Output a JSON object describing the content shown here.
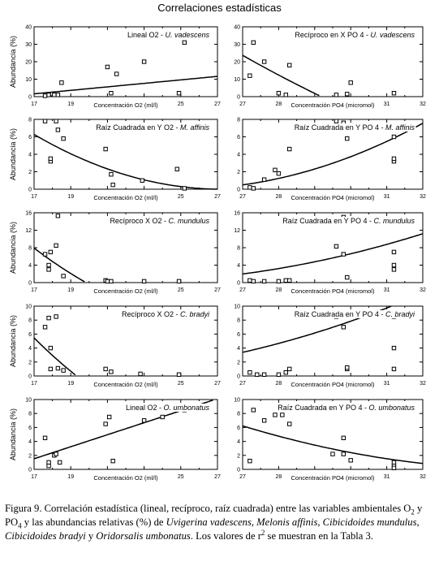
{
  "title": "Correlaciones estadísticas",
  "caption": {
    "lead": "Figura 9.",
    "text1": " Correlación estadística (lineal, recíproco, raíz cuadrada) entre las variables ambientales O",
    "sub_a": "2",
    "text2": " y PO",
    "sub_b": "4",
    "text3": " y las abundancias relativas (%) de ",
    "species": "Uvigerina vadescens, Melonis affinis, Cibicidoides mundulus, Cibicidoides bradyi",
    "text4": " y ",
    "species_last": "Oridorsalis umbonatus",
    "text5": ". Los valores de r",
    "sup": "2",
    "text6": " se muestran en la Tabla 3."
  },
  "chart_data": [
    {
      "type": "scatter",
      "row": 0,
      "col": 0,
      "title": "Lineal O2 - ",
      "title_italic": "U. vadescens",
      "ylabel": "Abundancia (%)",
      "xlabel": "Concentración O2 (ml/l)",
      "xlim": [
        17,
        27
      ],
      "ylim": [
        0,
        40
      ],
      "xticks": [
        17,
        19,
        21,
        23,
        25,
        27
      ],
      "yticks": [
        0,
        10,
        20,
        30,
        40
      ],
      "points": [
        [
          17.6,
          0.5
        ],
        [
          17.8,
          1
        ],
        [
          18,
          1.5
        ],
        [
          18.1,
          1
        ],
        [
          18.3,
          1
        ],
        [
          18.5,
          8
        ],
        [
          21,
          17
        ],
        [
          21.2,
          2
        ],
        [
          21.5,
          13
        ],
        [
          23,
          20
        ],
        [
          24.9,
          2
        ],
        [
          25.2,
          31
        ]
      ],
      "fit": {
        "kind": "linear",
        "a": -15.4,
        "b": 1.0
      }
    },
    {
      "type": "scatter",
      "row": 0,
      "col": 1,
      "title": "Recíproco en X PO 4 - ",
      "title_italic": "U. vadescens",
      "xlabel": "Concentración PO4 (micromol)",
      "xlim": [
        27,
        32
      ],
      "ylim": [
        0,
        40
      ],
      "xticks": [
        27,
        28,
        29,
        30,
        31,
        32
      ],
      "yticks": [
        0,
        10,
        20,
        30,
        40
      ],
      "points": [
        [
          27.2,
          12
        ],
        [
          27.3,
          31
        ],
        [
          27.6,
          20
        ],
        [
          28,
          2
        ],
        [
          28.2,
          1
        ],
        [
          28.3,
          18
        ],
        [
          29.6,
          1
        ],
        [
          29.9,
          1.5
        ],
        [
          30,
          8
        ],
        [
          31.2,
          2
        ]
      ],
      "fit": {
        "kind": "recip",
        "a": -292.5,
        "b": 8536
      }
    },
    {
      "type": "scatter",
      "row": 1,
      "col": 0,
      "title": "Raíz Cuadrada en Y O2 - ",
      "title_italic": "M. affinis",
      "ylabel": "Abundancia (%)",
      "xlabel": "Concentración O2 (ml/l)",
      "xlim": [
        17,
        27
      ],
      "ylim": [
        0,
        8
      ],
      "xticks": [
        17,
        19,
        21,
        23,
        25,
        27
      ],
      "yticks": [
        0,
        2,
        4,
        6,
        8
      ],
      "points": [
        [
          17.6,
          7.8
        ],
        [
          17.9,
          3.2
        ],
        [
          17.9,
          3.5
        ],
        [
          18.2,
          7.8
        ],
        [
          18.3,
          6.8
        ],
        [
          18.6,
          5.8
        ],
        [
          20.9,
          4.6
        ],
        [
          21.2,
          1.7
        ],
        [
          21.3,
          0.5
        ],
        [
          22.9,
          1
        ],
        [
          24.8,
          2.3
        ],
        [
          25.2,
          0.1
        ]
      ],
      "fit": {
        "kind": "sqrt",
        "a": 6.67,
        "b": -0.245
      }
    },
    {
      "type": "scatter",
      "row": 1,
      "col": 1,
      "title": "Raíz Cuadrada en Y PO 4 - ",
      "title_italic": "M. affinis",
      "xlabel": "Concentración PO4 (micromol)",
      "xlim": [
        27,
        32
      ],
      "ylim": [
        0,
        8
      ],
      "xticks": [
        27,
        28,
        29,
        30,
        31,
        32
      ],
      "yticks": [
        0,
        2,
        4,
        6,
        8
      ],
      "points": [
        [
          27.2,
          0.2
        ],
        [
          27.3,
          0.1
        ],
        [
          27.6,
          1.1
        ],
        [
          27.9,
          2.2
        ],
        [
          28,
          1.8
        ],
        [
          28.3,
          4.6
        ],
        [
          29.6,
          7.8
        ],
        [
          29.8,
          7.6
        ],
        [
          29.9,
          5.8
        ],
        [
          31.2,
          3.2
        ],
        [
          31.2,
          3.5
        ],
        [
          31.2,
          6
        ]
      ],
      "fit": {
        "kind": "sqrt",
        "a": -10.34,
        "b": 0.409
      }
    },
    {
      "type": "scatter",
      "row": 2,
      "col": 0,
      "title": "Recíproco X O2 - ",
      "title_italic": "C. mundulus",
      "ylabel": "Abundancia (%)",
      "xlabel": "Concentración O2 (ml/l)",
      "xlim": [
        17,
        27
      ],
      "ylim": [
        0,
        16
      ],
      "xticks": [
        17,
        19,
        21,
        23,
        25,
        27
      ],
      "yticks": [
        0,
        4,
        8,
        12,
        16
      ],
      "points": [
        [
          17.6,
          6.5
        ],
        [
          17.8,
          3
        ],
        [
          17.8,
          4
        ],
        [
          17.9,
          7
        ],
        [
          18.2,
          8.5
        ],
        [
          18.3,
          15.3
        ],
        [
          18.6,
          1.5
        ],
        [
          20.9,
          0.5
        ],
        [
          21,
          0.3
        ],
        [
          21.2,
          0.3
        ],
        [
          23,
          0.3
        ],
        [
          24.9,
          0.3
        ]
      ],
      "fit": {
        "kind": "recip",
        "a": -47.6,
        "b": 944
      }
    },
    {
      "type": "scatter",
      "row": 2,
      "col": 1,
      "title": "Raíz Cuadrada en Y PO 4 - ",
      "title_italic": "C. mundulus",
      "xlabel": "Concentración PO4 (micromol)",
      "xlim": [
        27,
        32
      ],
      "ylim": [
        0,
        16
      ],
      "xticks": [
        27,
        28,
        29,
        30,
        31,
        32
      ],
      "yticks": [
        0,
        4,
        8,
        12,
        16
      ],
      "points": [
        [
          27.2,
          0.5
        ],
        [
          27.3,
          0.3
        ],
        [
          27.6,
          0.3
        ],
        [
          28,
          0.3
        ],
        [
          28.2,
          0.5
        ],
        [
          28.3,
          0.5
        ],
        [
          29.6,
          8.3
        ],
        [
          29.8,
          15
        ],
        [
          29.8,
          6.5
        ],
        [
          29.9,
          1.2
        ],
        [
          31.2,
          7
        ],
        [
          31.2,
          4
        ],
        [
          31.2,
          3
        ]
      ],
      "fit": {
        "kind": "sqrt",
        "a": -9.07,
        "b": 0.388
      }
    },
    {
      "type": "scatter",
      "row": 3,
      "col": 0,
      "title": "Recíproco X O2 - ",
      "title_italic": "C. bradyi",
      "ylabel": "Abundancia (%)",
      "xlabel": "Concentración O2 (ml/l)",
      "xlim": [
        17,
        27
      ],
      "ylim": [
        0,
        10
      ],
      "xticks": [
        17,
        19,
        21,
        23,
        25,
        27
      ],
      "yticks": [
        0,
        2,
        4,
        6,
        8,
        10
      ],
      "points": [
        [
          17.6,
          7
        ],
        [
          17.8,
          8.3
        ],
        [
          17.9,
          4
        ],
        [
          17.9,
          1
        ],
        [
          18.2,
          8.5
        ],
        [
          18.3,
          1.1
        ],
        [
          18.6,
          0.8
        ],
        [
          20.9,
          1
        ],
        [
          21.2,
          0.6
        ],
        [
          22.8,
          0.3
        ],
        [
          24.9,
          0.2
        ]
      ],
      "fit": {
        "kind": "recip",
        "a": -40,
        "b": 773
      }
    },
    {
      "type": "scatter",
      "row": 3,
      "col": 1,
      "title": "Raíz Cuadrada en Y  PO 4 - ",
      "title_italic": "C. bradyi",
      "xlabel": "Concentración PO4 (micromol)",
      "xlim": [
        27,
        32
      ],
      "ylim": [
        0,
        10
      ],
      "xticks": [
        27,
        28,
        29,
        30,
        31,
        32
      ],
      "yticks": [
        0,
        2,
        4,
        6,
        8,
        10
      ],
      "points": [
        [
          27.2,
          0.5
        ],
        [
          27.4,
          0.2
        ],
        [
          27.6,
          0.2
        ],
        [
          28,
          0.2
        ],
        [
          28.2,
          0.5
        ],
        [
          28.3,
          1
        ],
        [
          29.6,
          8.5
        ],
        [
          29.8,
          7
        ],
        [
          29.9,
          1
        ],
        [
          29.9,
          1.2
        ],
        [
          31.2,
          8.5
        ],
        [
          31.2,
          4
        ],
        [
          31.2,
          1
        ]
      ],
      "fit": {
        "kind": "sqrt",
        "a": -6.8,
        "b": 0.32
      }
    },
    {
      "type": "scatter",
      "row": 4,
      "col": 0,
      "title": "Lineal O2 - ",
      "title_italic": "O. umbonatus",
      "ylabel": "Abundancia (%)",
      "xlabel": "Concentración O2 (ml/l)",
      "xlim": [
        17,
        27
      ],
      "ylim": [
        0,
        10
      ],
      "xticks": [
        17,
        19,
        21,
        23,
        25,
        27
      ],
      "yticks": [
        0,
        2,
        4,
        6,
        8,
        10
      ],
      "points": [
        [
          17.6,
          4.5
        ],
        [
          17.8,
          1
        ],
        [
          17.8,
          0.5
        ],
        [
          18.1,
          2
        ],
        [
          18.2,
          2.2
        ],
        [
          18.4,
          1
        ],
        [
          20.9,
          6.5
        ],
        [
          21.1,
          7.5
        ],
        [
          21.3,
          1.2
        ],
        [
          23,
          7
        ],
        [
          24,
          7.5
        ],
        [
          25.2,
          8.5
        ]
      ],
      "fit": {
        "kind": "linear",
        "a": -13.1,
        "b": 0.86
      }
    },
    {
      "type": "scatter",
      "row": 4,
      "col": 1,
      "title": "Raíz Cuadrada en Y  PO 4 - ",
      "title_italic": "O. umbonatus",
      "xlabel": "Concentración PO4 (micromol)",
      "xlim": [
        27,
        32
      ],
      "ylim": [
        0,
        10
      ],
      "xticks": [
        27,
        28,
        29,
        30,
        31,
        32
      ],
      "yticks": [
        0,
        2,
        4,
        6,
        8,
        10
      ],
      "points": [
        [
          27.2,
          1.2
        ],
        [
          27.3,
          8.5
        ],
        [
          27.6,
          7
        ],
        [
          27.9,
          7.8
        ],
        [
          28.1,
          7.8
        ],
        [
          28.3,
          6.5
        ],
        [
          29.5,
          2.2
        ],
        [
          29.8,
          4.5
        ],
        [
          29.8,
          2.2
        ],
        [
          30,
          1.3
        ],
        [
          31.2,
          1
        ],
        [
          31.2,
          0.5
        ],
        [
          31.2,
          0.2
        ]
      ],
      "fit": {
        "kind": "sqrt",
        "a": 11.0,
        "b": -0.315
      }
    }
  ]
}
